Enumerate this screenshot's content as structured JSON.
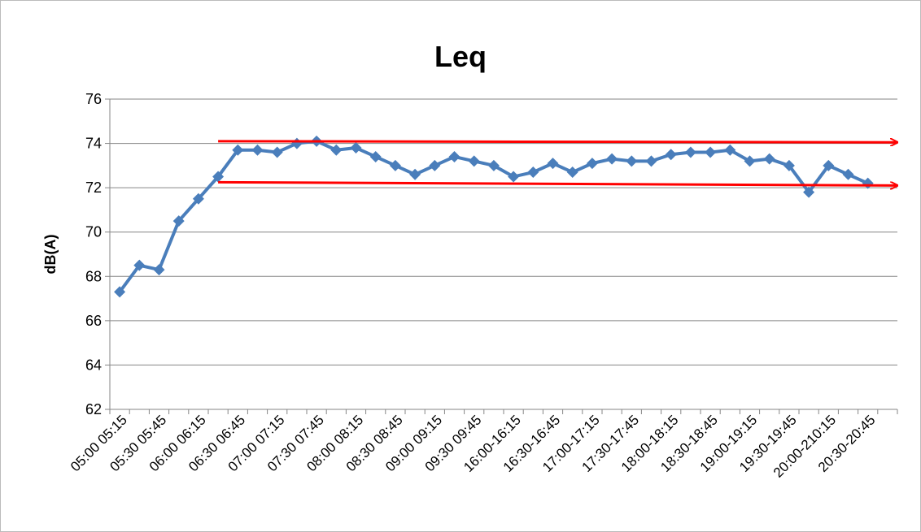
{
  "chart_data": {
    "type": "line",
    "title": "Leq",
    "y_label": "dB(A)",
    "categories": [
      "05:00 05:15",
      null,
      "05:30 05:45",
      null,
      "06:00 06:15",
      null,
      "06:30 06:45",
      null,
      "07:00 07:15",
      null,
      "07:30 07:45",
      null,
      "08:00 08:15",
      null,
      "08:30 08:45",
      null,
      "09:00 09:15",
      null,
      "09:30 09:45",
      null,
      "16:00-16:15",
      null,
      "16:30-16:45",
      null,
      "17:00-17:15",
      null,
      "17:30-17:45",
      null,
      "18:00-18:15",
      null,
      "18:30-18:45",
      null,
      "19:00-19:15",
      null,
      "19:30-19:45",
      null,
      "20:00-210:15",
      null,
      "20:30-20:45",
      null
    ],
    "series": [
      {
        "name": "Leq",
        "color": "#4a7ebb",
        "values": [
          67.3,
          68.5,
          68.3,
          70.5,
          71.5,
          72.5,
          73.7,
          73.7,
          73.6,
          74.0,
          74.1,
          73.7,
          73.8,
          73.4,
          73.0,
          72.6,
          73.0,
          73.4,
          73.2,
          73.0,
          72.5,
          72.7,
          73.1,
          72.7,
          73.1,
          73.3,
          73.2,
          73.2,
          73.5,
          73.6,
          73.6,
          73.7,
          73.2,
          73.3,
          73.0,
          71.8,
          73.0,
          72.6,
          72.2,
          null
        ]
      }
    ],
    "ylim": [
      62,
      76
    ],
    "yticks": [
      62,
      64,
      66,
      68,
      70,
      72,
      74,
      76
    ],
    "grid": true,
    "arrows": [
      {
        "color": "#ff0000",
        "x": [
          5,
          39.5
        ],
        "y": [
          74.1,
          74.05
        ]
      },
      {
        "color": "#ff0000",
        "x": [
          5,
          39.5
        ],
        "y": [
          72.25,
          72.1
        ]
      }
    ]
  }
}
